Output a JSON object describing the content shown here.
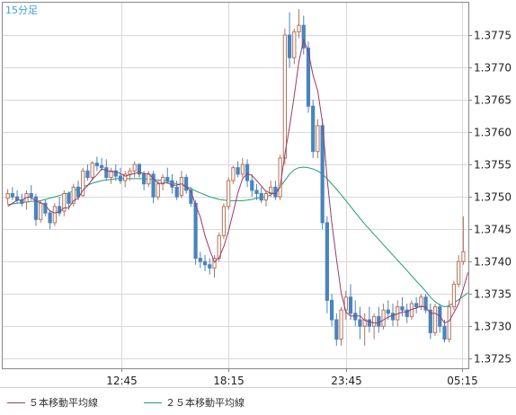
{
  "period_label": "15分足",
  "chart_data": {
    "type": "candlestick",
    "x_labels": [
      "12:45",
      "18:15",
      "23:45",
      "05:15"
    ],
    "y_ticks": [
      "1.3775",
      "1.3770",
      "1.3765",
      "1.3760",
      "1.3755",
      "1.3750",
      "1.3745",
      "1.3740",
      "1.3735",
      "1.3730",
      "1.3725"
    ],
    "ylim": [
      1.37235,
      1.378
    ],
    "grid": true,
    "colors": {
      "up": "#b5735a",
      "down": "#4a84bd",
      "ma5": "#9a3a6a",
      "ma25": "#1e9e7a",
      "grid": "#d8d8d8",
      "axis": "#888888"
    },
    "legend": [
      {
        "name": "５本移動平均線",
        "color": "#9a3a6a"
      },
      {
        "name": "２５本移動平均線",
        "color": "#1e9e7a"
      }
    ],
    "candles": [
      [
        1.37498,
        1.37512,
        1.37488,
        1.37505
      ],
      [
        1.37505,
        1.37515,
        1.37495,
        1.375
      ],
      [
        1.375,
        1.3751,
        1.3749,
        1.37495
      ],
      [
        1.37495,
        1.37505,
        1.37485,
        1.3749
      ],
      [
        1.37492,
        1.3751,
        1.3748,
        1.37505
      ],
      [
        1.37505,
        1.37518,
        1.37495,
        1.375
      ],
      [
        1.375,
        1.37505,
        1.37455,
        1.37465
      ],
      [
        1.37465,
        1.37495,
        1.3746,
        1.3749
      ],
      [
        1.3749,
        1.37495,
        1.3747,
        1.37475
      ],
      [
        1.37475,
        1.3748,
        1.3745,
        1.3746
      ],
      [
        1.3746,
        1.3749,
        1.37455,
        1.37485
      ],
      [
        1.37485,
        1.375,
        1.3747,
        1.37475
      ],
      [
        1.37478,
        1.3751,
        1.3747,
        1.37505
      ],
      [
        1.37505,
        1.37508,
        1.3748,
        1.3749
      ],
      [
        1.3749,
        1.3752,
        1.37485,
        1.37515
      ],
      [
        1.37515,
        1.37525,
        1.37495,
        1.375
      ],
      [
        1.37502,
        1.37545,
        1.375,
        1.3754
      ],
      [
        1.3754,
        1.3755,
        1.37525,
        1.3753
      ],
      [
        1.3753,
        1.37555,
        1.37525,
        1.37552
      ],
      [
        1.37552,
        1.37562,
        1.3754,
        1.37548
      ],
      [
        1.37548,
        1.3756,
        1.3754,
        1.37545
      ],
      [
        1.37545,
        1.37558,
        1.37525,
        1.3753
      ],
      [
        1.3753,
        1.37545,
        1.3752,
        1.3754
      ],
      [
        1.3754,
        1.3755,
        1.37525,
        1.37532
      ],
      [
        1.37532,
        1.37545,
        1.3752,
        1.37525
      ],
      [
        1.37525,
        1.3754,
        1.37515,
        1.37535
      ],
      [
        1.37535,
        1.37545,
        1.37525,
        1.3754
      ],
      [
        1.3754,
        1.37555,
        1.3753,
        1.3755
      ],
      [
        1.3755,
        1.37552,
        1.3753,
        1.37535
      ],
      [
        1.37535,
        1.3754,
        1.3751,
        1.3752
      ],
      [
        1.3752,
        1.3754,
        1.37515,
        1.37535
      ],
      [
        1.37535,
        1.3754,
        1.3749,
        1.375
      ],
      [
        1.375,
        1.37525,
        1.37495,
        1.3752
      ],
      [
        1.3752,
        1.37535,
        1.3751,
        1.3753
      ],
      [
        1.3753,
        1.37545,
        1.3752,
        1.37525
      ],
      [
        1.37525,
        1.37535,
        1.37505,
        1.37515
      ],
      [
        1.37515,
        1.37525,
        1.37495,
        1.375
      ],
      [
        1.37502,
        1.3754,
        1.37498,
        1.3753
      ],
      [
        1.3753,
        1.37535,
        1.37505,
        1.3751
      ],
      [
        1.3751,
        1.37515,
        1.37485,
        1.3749
      ],
      [
        1.3749,
        1.37495,
        1.37395,
        1.37405
      ],
      [
        1.37405,
        1.37415,
        1.3739,
        1.374
      ],
      [
        1.374,
        1.3741,
        1.37385,
        1.37395
      ],
      [
        1.37395,
        1.37405,
        1.3738,
        1.3739
      ],
      [
        1.3739,
        1.3741,
        1.37375,
        1.37405
      ],
      [
        1.37405,
        1.37445,
        1.374,
        1.3744
      ],
      [
        1.3744,
        1.3749,
        1.37435,
        1.37485
      ],
      [
        1.37485,
        1.3753,
        1.3748,
        1.37525
      ],
      [
        1.37525,
        1.37548,
        1.3752,
        1.37545
      ],
      [
        1.37545,
        1.37555,
        1.3753,
        1.37535
      ],
      [
        1.37535,
        1.3756,
        1.3753,
        1.3755
      ],
      [
        1.3755,
        1.37558,
        1.37515,
        1.37525
      ],
      [
        1.37525,
        1.37535,
        1.375,
        1.3751
      ],
      [
        1.3751,
        1.3752,
        1.37495,
        1.37505
      ],
      [
        1.37505,
        1.37515,
        1.3749,
        1.37495
      ],
      [
        1.37495,
        1.3751,
        1.37485,
        1.37505
      ],
      [
        1.37505,
        1.37525,
        1.375,
        1.37515
      ],
      [
        1.37515,
        1.37525,
        1.37495,
        1.375
      ],
      [
        1.375,
        1.37565,
        1.37495,
        1.3756
      ],
      [
        1.3756,
        1.3776,
        1.3755,
        1.3775
      ],
      [
        1.3775,
        1.37785,
        1.377,
        1.37715
      ],
      [
        1.37715,
        1.3776,
        1.37705,
        1.37755
      ],
      [
        1.37755,
        1.3779,
        1.37745,
        1.37765
      ],
      [
        1.37765,
        1.3778,
        1.3772,
        1.3773
      ],
      [
        1.3773,
        1.3774,
        1.3763,
        1.3764
      ],
      [
        1.3764,
        1.3765,
        1.3756,
        1.3757
      ],
      [
        1.3757,
        1.3762,
        1.3756,
        1.3761
      ],
      [
        1.3761,
        1.3762,
        1.3745,
        1.3746
      ],
      [
        1.3746,
        1.3747,
        1.3732,
        1.3734
      ],
      [
        1.3734,
        1.3735,
        1.373,
        1.3731
      ],
      [
        1.3731,
        1.3732,
        1.3727,
        1.3728
      ],
      [
        1.3728,
        1.3733,
        1.3727,
        1.37325
      ],
      [
        1.37325,
        1.37355,
        1.3731,
        1.37345
      ],
      [
        1.37345,
        1.37365,
        1.3731,
        1.3732
      ],
      [
        1.3732,
        1.3734,
        1.373,
        1.3731
      ],
      [
        1.3731,
        1.3733,
        1.3728,
        1.373
      ],
      [
        1.373,
        1.3732,
        1.3727,
        1.3731
      ],
      [
        1.3731,
        1.3733,
        1.3729,
        1.373
      ],
      [
        1.373,
        1.3732,
        1.3728,
        1.37315
      ],
      [
        1.37315,
        1.3733,
        1.3729,
        1.373
      ],
      [
        1.373,
        1.37335,
        1.37295,
        1.37325
      ],
      [
        1.37325,
        1.3734,
        1.3731,
        1.3732
      ],
      [
        1.3732,
        1.37335,
        1.373,
        1.3731
      ],
      [
        1.3731,
        1.3734,
        1.373,
        1.3733
      ],
      [
        1.3733,
        1.37345,
        1.37315,
        1.37325
      ],
      [
        1.37325,
        1.37335,
        1.37305,
        1.37315
      ],
      [
        1.37315,
        1.3734,
        1.3731,
        1.37335
      ],
      [
        1.37335,
        1.37345,
        1.3732,
        1.3733
      ],
      [
        1.3733,
        1.3735,
        1.37325,
        1.37345
      ],
      [
        1.37345,
        1.3735,
        1.3732,
        1.37325
      ],
      [
        1.37325,
        1.37335,
        1.3728,
        1.3729
      ],
      [
        1.3729,
        1.37335,
        1.37285,
        1.3733
      ],
      [
        1.3733,
        1.37335,
        1.3729,
        1.373
      ],
      [
        1.373,
        1.3731,
        1.37275,
        1.3728
      ],
      [
        1.3728,
        1.3734,
        1.37275,
        1.3733
      ],
      [
        1.3733,
        1.3737,
        1.37325,
        1.37365
      ],
      [
        1.37365,
        1.3741,
        1.3736,
        1.374
      ],
      [
        1.374,
        1.3747,
        1.37395,
        1.37415
      ]
    ],
    "ma5": [
      1.37485,
      1.3749,
      1.37495,
      1.37495,
      1.37499,
      1.37499,
      1.37493,
      1.37491,
      1.37487,
      1.37478,
      1.37475,
      1.37477,
      1.37483,
      1.37483,
      1.37494,
      1.37498,
      1.3751,
      1.37517,
      1.37527,
      1.37534,
      1.37543,
      1.37541,
      1.37539,
      1.37539,
      1.37536,
      1.37532,
      1.37534,
      1.37536,
      1.37538,
      1.37536,
      1.37536,
      1.37528,
      1.37521,
      1.37521,
      1.37522,
      1.37518,
      1.37518,
      1.3752,
      1.37516,
      1.37509,
      1.37487,
      1.37469,
      1.3744,
      1.37418,
      1.37399,
      1.37406,
      1.37423,
      1.37447,
      1.37476,
      1.37506,
      1.37528,
      1.37536,
      1.37533,
      1.37525,
      1.37517,
      1.37508,
      1.37506,
      1.37504,
      1.37515,
      1.37566,
      1.37608,
      1.37656,
      1.37709,
      1.37743,
      1.37724,
      1.37688,
      1.37664,
      1.37615,
      1.37528,
      1.3746,
      1.37404,
      1.37351,
      1.37322,
      1.37316,
      1.37316,
      1.37316,
      1.37309,
      1.37307,
      1.37305,
      1.37305,
      1.3731,
      1.37314,
      1.37317,
      1.37319,
      1.37322,
      1.37322,
      1.37326,
      1.37328,
      1.37331,
      1.37329,
      1.3732,
      1.3732,
      1.37316,
      1.37305,
      1.37308,
      1.37321,
      1.37335,
      1.37358,
      1.37383
    ],
    "ma25": [
      1.37488,
      1.37489,
      1.3749,
      1.37491,
      1.37492,
      1.37493,
      1.37493,
      1.37494,
      1.37496,
      1.37498,
      1.375,
      1.37502,
      1.37504,
      1.37506,
      1.37509,
      1.37512,
      1.37515,
      1.37518,
      1.37521,
      1.37523,
      1.37525,
      1.37526,
      1.37527,
      1.37528,
      1.37528,
      1.37528,
      1.37528,
      1.37528,
      1.37528,
      1.37528,
      1.37527,
      1.37527,
      1.37526,
      1.37525,
      1.37524,
      1.37522,
      1.3752,
      1.37518,
      1.37516,
      1.37513,
      1.37509,
      1.37506,
      1.37503,
      1.375,
      1.37498,
      1.37496,
      1.37495,
      1.37494,
      1.37494,
      1.37494,
      1.37494,
      1.37495,
      1.37496,
      1.37498,
      1.37499,
      1.375,
      1.37503,
      1.37508,
      1.37515,
      1.37525,
      1.37535,
      1.37542,
      1.37545,
      1.37546,
      1.37545,
      1.37543,
      1.3754,
      1.37535,
      1.37528,
      1.3752,
      1.37512,
      1.37503,
      1.37494,
      1.37485,
      1.37476,
      1.37467,
      1.37458,
      1.3745,
      1.37442,
      1.37434,
      1.37426,
      1.37418,
      1.3741,
      1.37402,
      1.37394,
      1.37386,
      1.37378,
      1.3737,
      1.37362,
      1.37354,
      1.37345,
      1.37338,
      1.37333,
      1.3733,
      1.37332,
      1.37336,
      1.37341,
      1.37346,
      1.37352
    ]
  }
}
